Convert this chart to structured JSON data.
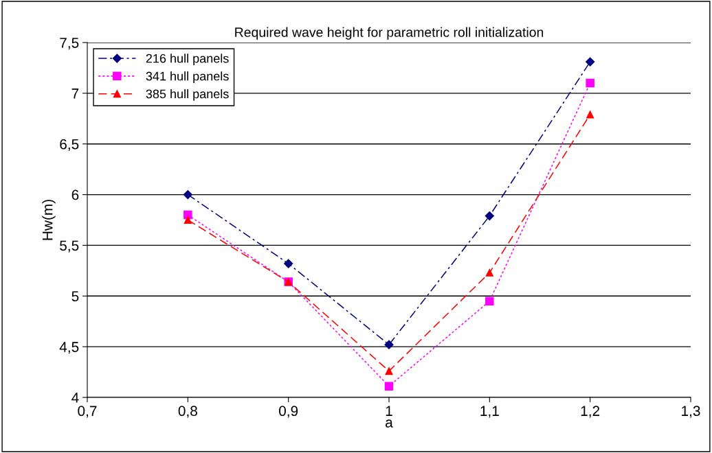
{
  "chart_data": {
    "type": "line",
    "title": "Required wave height for parametric roll initialization",
    "xlabel": "a",
    "ylabel": "Hw(m)",
    "x": [
      0.8,
      0.9,
      1.0,
      1.1,
      1.2
    ],
    "series": [
      {
        "name": "216 hull panels",
        "color": "#000080",
        "values": [
          6.0,
          5.32,
          4.52,
          5.79,
          7.31
        ],
        "marker": "diamond",
        "line_style": "dashdot"
      },
      {
        "name": "341 hull panels",
        "color": "#ff00ff",
        "values": [
          5.8,
          5.14,
          4.11,
          4.95,
          7.1
        ],
        "marker": "square",
        "line_style": "dotted"
      },
      {
        "name": "385 hull panels",
        "color": "#ff0000",
        "values": [
          5.75,
          5.14,
          4.26,
          5.23,
          6.79
        ],
        "marker": "triangle",
        "line_style": "dashed"
      }
    ],
    "xlim": [
      0.7,
      1.3
    ],
    "xticks": [
      {
        "value": 0.7,
        "label": "0,7"
      },
      {
        "value": 0.8,
        "label": "0,8"
      },
      {
        "value": 0.9,
        "label": "0,9"
      },
      {
        "value": 1,
        "label": "1"
      },
      {
        "value": 1.1,
        "label": "1,1"
      },
      {
        "value": 1.2,
        "label": "1,2"
      },
      {
        "value": 1.3,
        "label": "1,3"
      }
    ],
    "ylim": [
      4,
      7.5
    ],
    "yticks": [
      4,
      {
        "value": 4.5,
        "label": "4,5"
      },
      5,
      {
        "value": 5.5,
        "label": "5,5"
      },
      6,
      {
        "value": 6.5,
        "label": "6,5"
      },
      7,
      {
        "value": 7.5,
        "label": "7,5"
      }
    ],
    "grid": "y",
    "legend": "top left"
  }
}
